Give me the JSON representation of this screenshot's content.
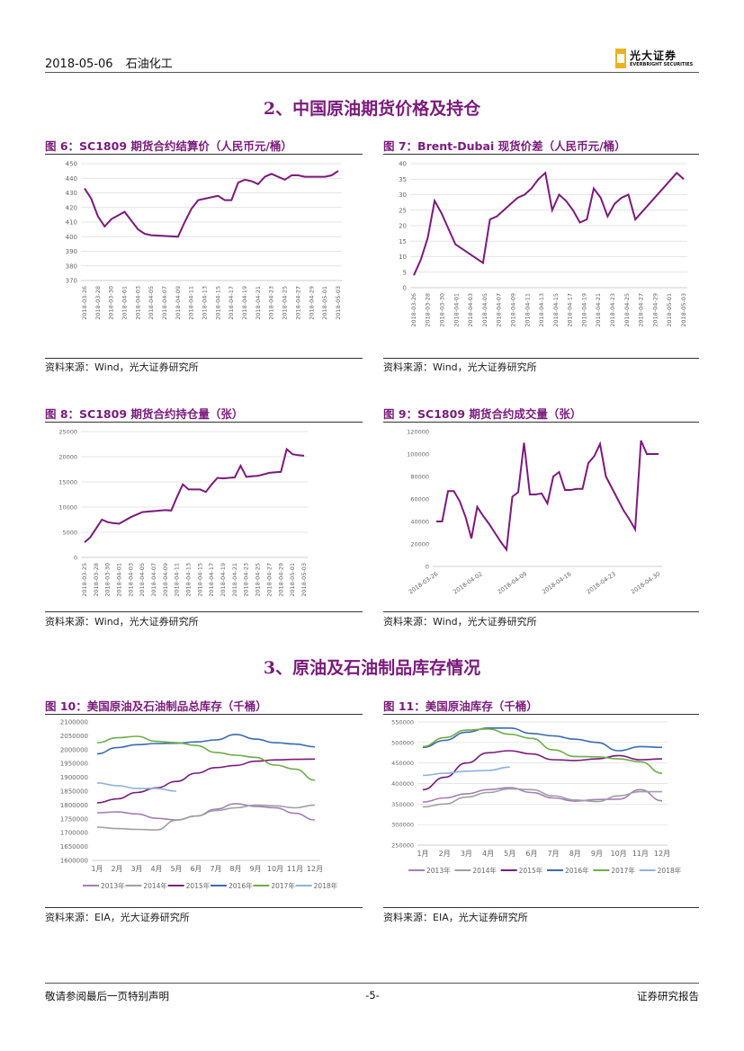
{
  "header": {
    "date": "2018-05-06",
    "category": "石油化工",
    "logo_cn": "光大证券",
    "logo_en": "EVERBRIGHT SECURITIES"
  },
  "sections": [
    {
      "title": "2、中国原油期货价格及持仓"
    },
    {
      "title": "3、原油及石油制品库存情况"
    }
  ],
  "figures": [
    {
      "label": "图 6：SC1809 期货合约结算价（人民币元/桶）",
      "source": "资料来源：Wind，光大证券研究所"
    },
    {
      "label": "图 7：Brent-Dubai 现货价差（人民币元/桶）",
      "source": "资料来源：Wind，光大证券研究所"
    },
    {
      "label": "图 8：SC1809 期货合约持仓量（张）",
      "source": "资料来源：Wind，光大证券研究所"
    },
    {
      "label": "图 9：SC1809 期货合约成交量（张）",
      "source": "资料来源：Wind，光大证券研究所"
    },
    {
      "label": "图 10：美国原油及石油制品总库存（千桶）",
      "source": "资料来源：EIA，光大证券研究所"
    },
    {
      "label": "图 11：美国原油库存（千桶）",
      "source": "资料来源：EIA，光大证券研究所"
    }
  ],
  "footer": {
    "left": "敬请参阅最后一页特别声明",
    "center": "-5-",
    "right": "证券研究报告"
  },
  "chart_data": [
    {
      "type": "line",
      "color": "#7b1a7c",
      "ylim": [
        370,
        450
      ],
      "yticks": [
        "450",
        "440",
        "430",
        "420",
        "410",
        "400",
        "390",
        "380",
        "370"
      ],
      "xticks": [
        "2018-03-26",
        "2018-03-28",
        "2018-03-30",
        "2018-04-01",
        "2018-04-03",
        "2018-04-05",
        "2018-04-07",
        "2018-04-09",
        "2018-04-11",
        "2018-04-13",
        "2018-04-15",
        "2018-04-17",
        "2018-04-19",
        "2018-04-21",
        "2018-04-23",
        "2018-04-25",
        "2018-04-27",
        "2018-04-29",
        "2018-05-01",
        "2018-05-03"
      ],
      "x": [
        0,
        1,
        2,
        3,
        4,
        6,
        8,
        9,
        10,
        14,
        15,
        16,
        17,
        18,
        19,
        20,
        21,
        22,
        23,
        24,
        25,
        26,
        27,
        28,
        30,
        31,
        32,
        33,
        35,
        36,
        37,
        38
      ],
      "values": [
        433,
        426,
        414,
        407,
        412,
        417,
        405,
        402,
        401,
        400,
        410,
        419,
        425,
        426,
        427,
        428,
        425,
        425,
        437,
        439,
        438,
        436,
        441,
        443,
        439,
        442,
        442,
        441,
        441,
        441,
        442,
        445
      ]
    },
    {
      "type": "line",
      "color": "#7b1a7c",
      "ylim": [
        0,
        40
      ],
      "yticks": [
        "40",
        "35",
        "30",
        "25",
        "20",
        "15",
        "10",
        "5",
        "0"
      ],
      "xticks": [
        "2018-03-26",
        "2018-03-28",
        "2018-03-30",
        "2018-04-01",
        "2018-04-03",
        "2018-04-05",
        "2018-04-07",
        "2018-04-09",
        "2018-04-11",
        "2018-04-13",
        "2018-04-15",
        "2018-04-17",
        "2018-04-19",
        "2018-04-21",
        "2018-04-23",
        "2018-04-25",
        "2018-04-27",
        "2018-04-29",
        "2018-05-01",
        "2018-05-03"
      ],
      "x": [
        0,
        1,
        2,
        3,
        4,
        5,
        6,
        10,
        11,
        12,
        13,
        14,
        15,
        16,
        17,
        18,
        19,
        20,
        21,
        22,
        23,
        24,
        25,
        26,
        27,
        28,
        29,
        30,
        31,
        32,
        38,
        39
      ],
      "values": [
        4,
        9,
        16,
        28,
        24,
        19,
        14,
        8,
        22,
        23,
        25,
        27,
        29,
        30,
        32,
        35,
        37,
        25,
        30,
        28,
        25,
        21,
        22,
        32,
        29,
        23,
        27,
        29,
        30,
        22,
        37,
        35
      ]
    },
    {
      "type": "line",
      "color": "#7b1a7c",
      "ylim": [
        0,
        25000
      ],
      "yticks": [
        "25000",
        "20000",
        "15000",
        "10000",
        "5000",
        "0"
      ],
      "xticks": [
        "2018-03-25",
        "2018-03-28",
        "2018-03-30",
        "2018-04-01",
        "2018-04-03",
        "2018-04-05",
        "2018-04-07",
        "2018-04-09",
        "2018-04-11",
        "2018-04-13",
        "2018-04-15",
        "2018-04-17",
        "2018-04-19",
        "2018-04-21",
        "2018-04-23",
        "2018-04-25",
        "2018-04-27",
        "2018-04-29",
        "2018-05-01",
        "2018-05-03"
      ],
      "x": [
        0,
        1,
        3,
        4,
        5,
        6,
        8,
        10,
        11,
        12,
        13,
        14,
        15,
        16,
        17,
        18,
        19,
        20,
        21,
        22,
        23,
        24,
        25,
        26,
        27,
        28,
        29,
        30,
        31,
        32,
        34,
        35,
        36,
        37,
        38
      ],
      "values": [
        3000,
        4000,
        7500,
        7000,
        6800,
        6700,
        8000,
        9000,
        9100,
        9200,
        9300,
        9400,
        9300,
        12000,
        14500,
        13500,
        13500,
        13500,
        13000,
        14500,
        15800,
        15700,
        15800,
        15900,
        18200,
        16000,
        16100,
        16200,
        16500,
        16800,
        17000,
        21500,
        20500,
        20300,
        20200
      ]
    },
    {
      "type": "line",
      "color": "#7b1a7c",
      "ylim": [
        0,
        120000
      ],
      "yticks": [
        "120000",
        "100000",
        "80000",
        "60000",
        "40000",
        "20000",
        "0"
      ],
      "xticks": [
        "2018-03-26",
        "2018-04-02",
        "2018-04-09",
        "2018-04-16",
        "2018-04-23",
        "2018-04-30"
      ],
      "x": [
        0,
        1,
        2,
        3,
        4,
        5,
        6,
        7,
        8,
        9,
        10,
        11,
        12,
        13,
        14,
        15,
        16,
        17,
        18,
        19,
        20,
        21,
        22,
        23,
        24,
        25,
        26,
        27,
        28,
        29,
        30,
        31,
        32,
        33,
        34,
        35,
        36,
        37,
        38
      ],
      "values": [
        40000,
        40000,
        67000,
        67000,
        58000,
        44000,
        25000,
        53000,
        45000,
        38000,
        30000,
        22000,
        15000,
        62000,
        66000,
        110000,
        64000,
        64000,
        65000,
        56000,
        80000,
        84000,
        68000,
        68000,
        69000,
        69000,
        92000,
        98000,
        109000,
        80000,
        70000,
        60000,
        50000,
        42000,
        33000,
        112000,
        100000,
        100000,
        100000
      ]
    },
    {
      "type": "line",
      "ylim": [
        1600000,
        2100000
      ],
      "yticks": [
        "2100000",
        "2050000",
        "2000000",
        "1950000",
        "1900000",
        "1850000",
        "1800000",
        "1750000",
        "1700000",
        "1650000",
        "1600000"
      ],
      "xticks": [
        "1月",
        "2月",
        "3月",
        "4月",
        "5月",
        "6月",
        "7月",
        "8月",
        "9月",
        "10月",
        "11月",
        "12月"
      ],
      "legend_position": "bottom",
      "series": [
        {
          "name": "2013年",
          "color": "#a67db8",
          "values": [
            1772000,
            1775000,
            1768000,
            1752000,
            1746000,
            1760000,
            1785000,
            1805000,
            1795000,
            1790000,
            1770000,
            1746000
          ]
        },
        {
          "name": "2014年",
          "color": "#a0a0a0",
          "values": [
            1720000,
            1715000,
            1712000,
            1710000,
            1745000,
            1760000,
            1780000,
            1790000,
            1800000,
            1797000,
            1790000,
            1800000
          ]
        },
        {
          "name": "2015年",
          "color": "#7b1a7c",
          "values": [
            1808000,
            1822000,
            1845000,
            1862000,
            1885000,
            1915000,
            1935000,
            1943000,
            1958000,
            1963000,
            1965000,
            1966000
          ]
        },
        {
          "name": "2016年",
          "color": "#3a6ab2",
          "values": [
            1985000,
            2007000,
            2018000,
            2022000,
            2023000,
            2028000,
            2035000,
            2055000,
            2038000,
            2025000,
            2020000,
            2010000
          ]
        },
        {
          "name": "2017年",
          "color": "#6fad47",
          "values": [
            2025000,
            2043000,
            2048000,
            2030000,
            2025000,
            2015000,
            1990000,
            1980000,
            1972000,
            1944000,
            1930000,
            1890000
          ]
        },
        {
          "name": "2018年",
          "color": "#8fb2dc",
          "values": [
            1880000,
            1870000,
            1860000,
            1860000,
            1850000
          ]
        }
      ]
    },
    {
      "type": "line",
      "ylim": [
        250000,
        550000
      ],
      "yticks": [
        "550000",
        "500000",
        "450000",
        "400000",
        "350000",
        "300000",
        "250000"
      ],
      "xticks": [
        "1月",
        "2月",
        "3月",
        "4月",
        "5月",
        "6月",
        "7月",
        "8月",
        "9月",
        "10月",
        "11月",
        "12月"
      ],
      "legend_position": "bottom",
      "series": [
        {
          "name": "2013年",
          "color": "#a67db8",
          "values": [
            355000,
            365000,
            375000,
            385000,
            390000,
            378000,
            365000,
            357000,
            361000,
            362000,
            385000,
            358000
          ]
        },
        {
          "name": "2014年",
          "color": "#a0a0a0",
          "values": [
            343000,
            350000,
            367000,
            378000,
            387000,
            385000,
            370000,
            360000,
            356000,
            370000,
            380000,
            380000
          ]
        },
        {
          "name": "2015年",
          "color": "#7b1a7c",
          "values": [
            385000,
            415000,
            450000,
            475000,
            480000,
            472000,
            458000,
            456000,
            460000,
            468000,
            458000,
            460000
          ]
        },
        {
          "name": "2016年",
          "color": "#3a6ab2",
          "values": [
            488000,
            505000,
            525000,
            535000,
            535000,
            522000,
            516000,
            508000,
            500000,
            480000,
            490000,
            488000
          ]
        },
        {
          "name": "2017年",
          "color": "#6fad47",
          "values": [
            490000,
            512000,
            530000,
            533000,
            520000,
            510000,
            482000,
            466000,
            465000,
            460000,
            453000,
            425000
          ]
        },
        {
          "name": "2018年",
          "color": "#8fb2dc",
          "values": [
            420000,
            425000,
            430000,
            432000,
            440000
          ]
        }
      ]
    }
  ]
}
